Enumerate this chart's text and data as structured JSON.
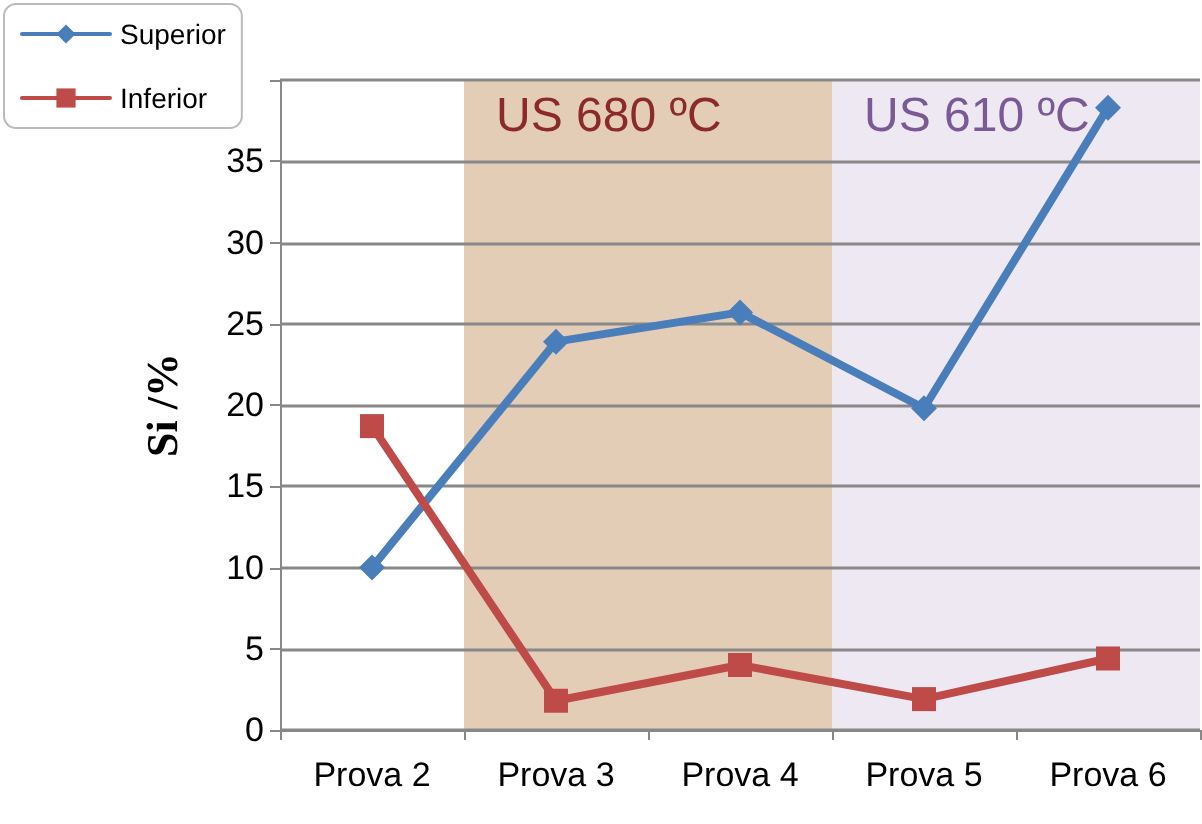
{
  "chart_data": {
    "type": "line",
    "ylabel": "Si /%",
    "categories": [
      "Prova 2",
      "Prova 3",
      "Prova 4",
      "Prova 5",
      "Prova 6"
    ],
    "series": [
      {
        "name": "Superior",
        "color": "#4a7ebb",
        "marker": "diamond",
        "values": [
          10,
          23.9,
          25.7,
          19.8,
          38.3
        ]
      },
      {
        "name": "Inferior",
        "color": "#be4b48",
        "marker": "square",
        "values": [
          18.7,
          1.8,
          4.0,
          1.9,
          4.4
        ]
      }
    ],
    "ylim": [
      0,
      40
    ],
    "yticks": [
      0,
      5,
      10,
      15,
      20,
      25,
      30,
      35,
      {
        "value": 40,
        "label": null
      }
    ],
    "bands": [
      {
        "axis": "x",
        "from": "Prova 3",
        "to": "Prova 4",
        "label": "US 680 ºC",
        "color": "#dcc0a4"
      },
      {
        "axis": "x",
        "from": "Prova 5",
        "to": "Prova 6",
        "label": "US 610 ºC",
        "color": "#e8e2ef"
      }
    ],
    "grid": "y",
    "legend": "top left",
    "line_style": "solid"
  }
}
